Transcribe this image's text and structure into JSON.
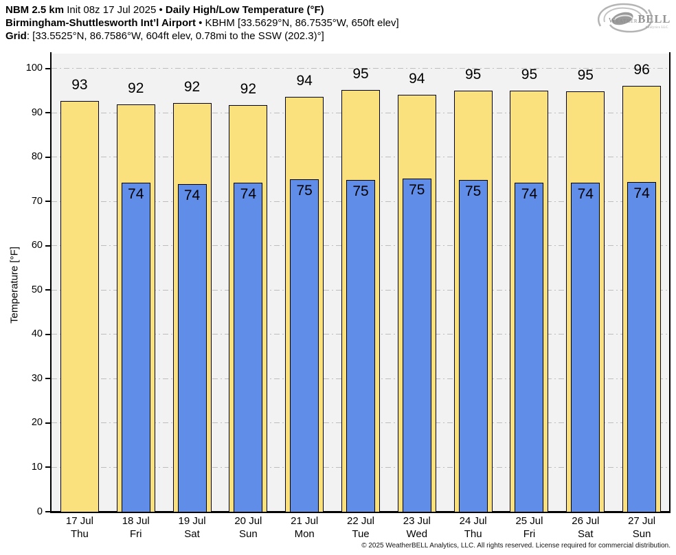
{
  "header": {
    "line1_model": "NBM 2.5 km",
    "line1_init": " Init 08z 17 Jul 2025 • ",
    "line1_title": "Daily High/Low Temperature (°F)",
    "line2_station": "Birmingham-Shuttlesworth Int’l Airport",
    "line2_meta": " • KBHM [33.5629°N, 86.7535°W, 650ft elev]",
    "line3_label": "Grid",
    "line3_meta": ": [33.5525°N, 86.7586°W, 604ft elev, 0.78mi to the SSW (202.3)°]"
  },
  "logo": {
    "brand_weather": "Weather",
    "brand_bell": "BELL",
    "subtext": "Analytics LLC"
  },
  "chart_data": {
    "type": "bar",
    "title": "Daily High/Low Temperature (°F)",
    "xlabel": "",
    "ylabel": "Temperature [°F]",
    "ylim": [
      0,
      103.4
    ],
    "yticks": [
      0,
      10,
      20,
      30,
      40,
      50,
      60,
      70,
      80,
      90,
      100
    ],
    "grid": "horizontal dash-dot",
    "plot_background": "#f2f2f2",
    "categories_date": [
      "17 Jul",
      "18 Jul",
      "19 Jul",
      "20 Jul",
      "21 Jul",
      "22 Jul",
      "23 Jul",
      "24 Jul",
      "25 Jul",
      "26 Jul",
      "27 Jul"
    ],
    "categories_day": [
      "Thu",
      "Fri",
      "Sat",
      "Sun",
      "Mon",
      "Tue",
      "Wed",
      "Thu",
      "Fri",
      "Sat",
      "Sun"
    ],
    "series": [
      {
        "name": "Daily High",
        "color": "#fae17d",
        "labels": [
          93,
          92,
          92,
          92,
          94,
          95,
          94,
          95,
          95,
          95,
          96
        ],
        "values": [
          92.7,
          91.9,
          92.2,
          91.8,
          93.6,
          95.2,
          94.1,
          95.0,
          95.1,
          94.9,
          96.1
        ]
      },
      {
        "name": "Daily Low",
        "color": "#5f8de8",
        "labels": [
          null,
          74,
          74,
          74,
          75,
          75,
          75,
          75,
          74,
          74,
          74
        ],
        "values": [
          null,
          74.3,
          74.0,
          74.3,
          75.0,
          74.8,
          75.2,
          74.8,
          74.2,
          74.2,
          74.4
        ]
      }
    ]
  },
  "footer": {
    "copyright": "© 2025 WeatherBELL Analytics, LLC. All rights reserved. License required for commercial distribution."
  }
}
